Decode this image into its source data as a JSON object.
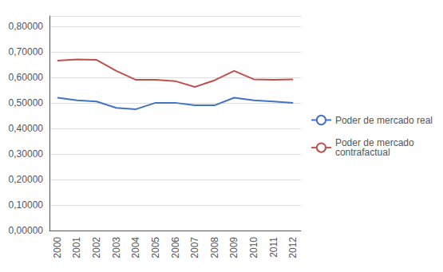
{
  "chart_data": {
    "type": "line",
    "x": [
      2000,
      2001,
      2002,
      2003,
      2004,
      2005,
      2006,
      2007,
      2008,
      2009,
      2010,
      2011,
      2012
    ],
    "series": [
      {
        "name": "Poder de mercado real",
        "color": "#4472C4",
        "values": [
          0.52,
          0.51,
          0.505,
          0.48,
          0.475,
          0.5,
          0.5,
          0.49,
          0.49,
          0.52,
          0.51,
          0.505,
          0.5
        ]
      },
      {
        "name": "Poder de mercado\ncontrafactual",
        "color": "#C0504D",
        "values": [
          0.665,
          0.67,
          0.668,
          0.625,
          0.59,
          0.59,
          0.585,
          0.562,
          0.588,
          0.625,
          0.592,
          0.59,
          0.592
        ]
      }
    ],
    "xlim": [
      1999.6,
      2012.4
    ],
    "xticks": [
      2000,
      2001,
      2002,
      2003,
      2004,
      2005,
      2006,
      2007,
      2008,
      2009,
      2010,
      2011,
      2012
    ],
    "ylim": [
      0.0,
      0.84
    ],
    "yticks": [
      {
        "value": 0.0,
        "label": "0,00000"
      },
      {
        "value": 0.1,
        "label": "0,10000"
      },
      {
        "value": 0.2,
        "label": "0,20000"
      },
      {
        "value": 0.3,
        "label": "0,30000"
      },
      {
        "value": 0.4,
        "label": "0,40000"
      },
      {
        "value": 0.5,
        "label": "0,50000"
      },
      {
        "value": 0.6,
        "label": "0,60000"
      },
      {
        "value": 0.7,
        "label": "0,70000"
      },
      {
        "value": 0.8,
        "label": "0,80000"
      }
    ],
    "grid": true,
    "legend": "right"
  }
}
